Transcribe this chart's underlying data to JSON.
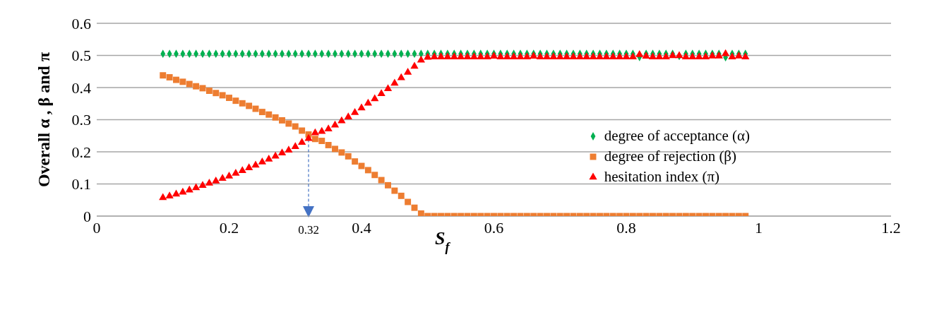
{
  "chart_data": {
    "type": "scatter",
    "xlabel": "S$_{f}$",
    "ylabel": "Overall α , β and π",
    "x": [
      0.1,
      0.11,
      0.12,
      0.13,
      0.14,
      0.15,
      0.16,
      0.17,
      0.18,
      0.19,
      0.2,
      0.21,
      0.22,
      0.23,
      0.24,
      0.25,
      0.26,
      0.27,
      0.28,
      0.29,
      0.3,
      0.31,
      0.32,
      0.33,
      0.34,
      0.35,
      0.36,
      0.37,
      0.38,
      0.39,
      0.4,
      0.41,
      0.42,
      0.43,
      0.44,
      0.45,
      0.46,
      0.47,
      0.48,
      0.49,
      0.5,
      0.51,
      0.52,
      0.53,
      0.54,
      0.55,
      0.56,
      0.57,
      0.58,
      0.59,
      0.6,
      0.61,
      0.62,
      0.63,
      0.64,
      0.65,
      0.66,
      0.67,
      0.68,
      0.69,
      0.7,
      0.71,
      0.72,
      0.73,
      0.74,
      0.75,
      0.76,
      0.77,
      0.78,
      0.79,
      0.8,
      0.81,
      0.82,
      0.83,
      0.84,
      0.85,
      0.86,
      0.87,
      0.88,
      0.89,
      0.9,
      0.91,
      0.92,
      0.93,
      0.94,
      0.95,
      0.96,
      0.97,
      0.98
    ],
    "series": [
      {
        "name": "degree of acceptance (α)",
        "color": "#00b050",
        "marker": "diamond",
        "values": [
          0.505,
          0.505,
          0.505,
          0.505,
          0.505,
          0.505,
          0.505,
          0.505,
          0.505,
          0.505,
          0.505,
          0.505,
          0.505,
          0.505,
          0.505,
          0.505,
          0.505,
          0.505,
          0.505,
          0.505,
          0.505,
          0.505,
          0.505,
          0.505,
          0.505,
          0.505,
          0.505,
          0.505,
          0.505,
          0.505,
          0.505,
          0.505,
          0.505,
          0.505,
          0.505,
          0.505,
          0.505,
          0.505,
          0.505,
          0.505,
          0.505,
          0.505,
          0.505,
          0.505,
          0.505,
          0.505,
          0.505,
          0.505,
          0.505,
          0.505,
          0.505,
          0.505,
          0.505,
          0.505,
          0.505,
          0.505,
          0.505,
          0.505,
          0.505,
          0.505,
          0.505,
          0.505,
          0.505,
          0.505,
          0.505,
          0.505,
          0.505,
          0.505,
          0.505,
          0.505,
          0.505,
          0.505,
          0.495,
          0.505,
          0.505,
          0.505,
          0.505,
          0.505,
          0.498,
          0.505,
          0.505,
          0.505,
          0.505,
          0.505,
          0.505,
          0.494,
          0.505,
          0.505,
          0.505
        ]
      },
      {
        "name": "degree of rejection (β)",
        "color": "#ed7d31",
        "marker": "square",
        "values": [
          0.438,
          0.432,
          0.424,
          0.418,
          0.411,
          0.404,
          0.398,
          0.39,
          0.383,
          0.376,
          0.368,
          0.359,
          0.351,
          0.343,
          0.334,
          0.324,
          0.316,
          0.307,
          0.298,
          0.288,
          0.279,
          0.266,
          0.254,
          0.24,
          0.234,
          0.221,
          0.209,
          0.198,
          0.186,
          0.17,
          0.156,
          0.143,
          0.128,
          0.112,
          0.096,
          0.079,
          0.063,
          0.044,
          0.026,
          0.008,
          0,
          0,
          0,
          0,
          0,
          0,
          0,
          0,
          0,
          0,
          0,
          0,
          0,
          0,
          0,
          0,
          0,
          0,
          0,
          0,
          0,
          0,
          0,
          0,
          0,
          0,
          0,
          0,
          0,
          0,
          0,
          0,
          0,
          0,
          0,
          0,
          0,
          0,
          0,
          0,
          0,
          0,
          0,
          0,
          0,
          0,
          0,
          0,
          0
        ]
      },
      {
        "name": "hesitation index (π)",
        "color": "#ff0000",
        "marker": "triangle",
        "values": [
          0.057,
          0.062,
          0.068,
          0.074,
          0.081,
          0.088,
          0.095,
          0.102,
          0.109,
          0.117,
          0.124,
          0.133,
          0.141,
          0.15,
          0.158,
          0.168,
          0.177,
          0.186,
          0.196,
          0.205,
          0.216,
          0.229,
          0.241,
          0.259,
          0.263,
          0.271,
          0.283,
          0.296,
          0.308,
          0.322,
          0.336,
          0.351,
          0.365,
          0.381,
          0.396,
          0.413,
          0.43,
          0.447,
          0.466,
          0.485,
          0.494,
          0.495,
          0.495,
          0.495,
          0.495,
          0.495,
          0.495,
          0.495,
          0.495,
          0.495,
          0.497,
          0.495,
          0.495,
          0.495,
          0.495,
          0.495,
          0.497,
          0.495,
          0.495,
          0.495,
          0.495,
          0.495,
          0.495,
          0.495,
          0.495,
          0.495,
          0.495,
          0.495,
          0.495,
          0.495,
          0.495,
          0.495,
          0.502,
          0.497,
          0.495,
          0.495,
          0.495,
          0.499,
          0.499,
          0.495,
          0.495,
          0.495,
          0.495,
          0.498,
          0.498,
          0.505,
          0.495,
          0.498,
          0.495
        ]
      }
    ],
    "annotations": [
      {
        "text": "0.32",
        "x": 0.32,
        "y": 0.254
      }
    ],
    "xlim": [
      0,
      1.2
    ],
    "xticks": [
      0,
      0.2,
      0.4,
      0.6,
      0.8,
      1,
      1.2
    ],
    "ylim": [
      0,
      0.6
    ],
    "yticks": [
      0,
      0.1,
      0.2,
      0.3,
      0.4,
      0.5,
      0.6
    ],
    "grid": "y",
    "legend": "right"
  }
}
